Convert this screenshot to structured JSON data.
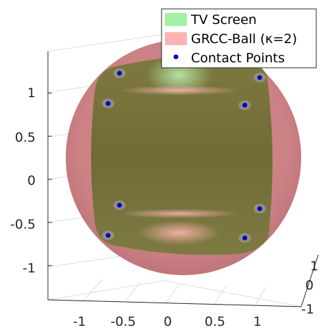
{
  "chart_data": {
    "type": "scatter",
    "projection": "3d",
    "title": "",
    "xlabel": "",
    "ylabel": "",
    "zlabel": "",
    "xticks": [
      "-1",
      "-0.5",
      "0",
      "0.5",
      "1"
    ],
    "yticks": [
      "-1",
      "-0.5",
      "0",
      "0.5",
      "1"
    ],
    "zticks": [
      "-1",
      "0",
      "1"
    ],
    "xlim": [
      -1.4,
      1.4
    ],
    "ylim": [
      -1.4,
      1.4
    ],
    "zlim": [
      -1.4,
      1.4
    ],
    "grid": true,
    "legend_placement": "top-right",
    "series": [
      {
        "name": "TV Screen",
        "kind": "surface",
        "color": "#99ee99"
      },
      {
        "name": "GRCC-Ball (κ=2)",
        "kind": "surface",
        "color": "#ffaaaa"
      },
      {
        "name": "Contact Points",
        "kind": "points",
        "color": "#0000cc",
        "points": [
          {
            "x": -0.55,
            "y": 1.23
          },
          {
            "x": 1.05,
            "y": 1.18
          },
          {
            "x": -0.68,
            "y": 0.88
          },
          {
            "x": 0.88,
            "y": 0.86
          },
          {
            "x": -0.55,
            "y": -0.3
          },
          {
            "x": 1.05,
            "y": -0.34
          },
          {
            "x": -0.68,
            "y": -0.65
          },
          {
            "x": 0.88,
            "y": -0.68
          }
        ]
      }
    ]
  }
}
